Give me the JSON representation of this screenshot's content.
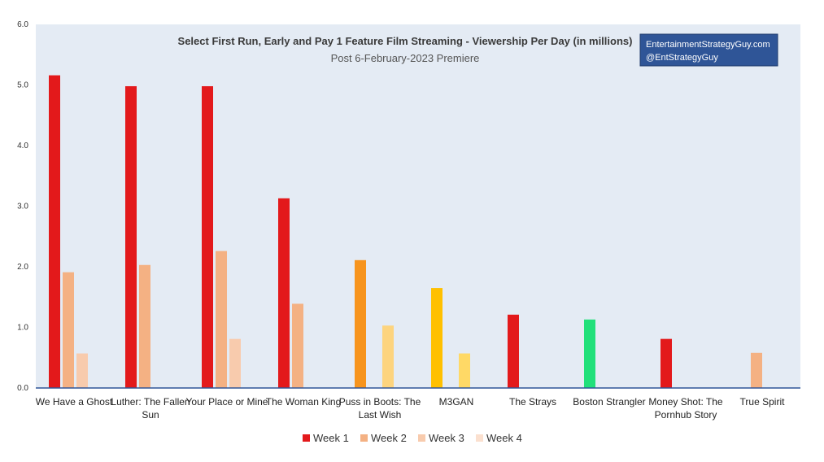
{
  "chart_data": {
    "type": "bar",
    "title": "Select First Run, Early and Pay 1 Feature Film Streaming - Viewership Per Day (in millions)",
    "subtitle": "Post 6-February-2023 Premiere",
    "annotation": [
      "EntertainmentStrategyGuy.com",
      "@EntStrategyGuy"
    ],
    "ylim": [
      0,
      6
    ],
    "yticks": [
      "0.0",
      "1.0",
      "2.0",
      "3.0",
      "4.0",
      "5.0",
      "6.0"
    ],
    "grid": false,
    "legend_position": "bottom",
    "categories": [
      [
        "We Have a Ghost"
      ],
      [
        "Luther: The Fallen",
        "Sun"
      ],
      [
        "Your Place or Mine"
      ],
      [
        "The Woman King"
      ],
      [
        "Puss in Boots: The",
        "Last Wish"
      ],
      [
        "M3GAN"
      ],
      [
        "The Strays"
      ],
      [
        "Boston Strangler"
      ],
      [
        "Money Shot: The",
        "Pornhub Story"
      ],
      [
        "True Spirit"
      ]
    ],
    "series": [
      {
        "name": "Week 1",
        "color": "#e3191b",
        "values": [
          5.16,
          4.98,
          4.98,
          3.13,
          2.11,
          1.65,
          1.21,
          1.13,
          0.81,
          null
        ]
      },
      {
        "name": "Week 2",
        "color": "#f4b183",
        "values": [
          1.91,
          2.03,
          2.26,
          1.39,
          null,
          null,
          null,
          null,
          null,
          0.58
        ]
      },
      {
        "name": "Week 3",
        "color": "#f8cbad",
        "values": [
          0.57,
          null,
          0.81,
          null,
          1.03,
          0.57,
          null,
          null,
          null,
          null
        ]
      },
      {
        "name": "Week 4",
        "color": "#fbe0cf",
        "values": [
          null,
          null,
          null,
          null,
          null,
          null,
          null,
          null,
          null,
          null
        ]
      }
    ],
    "bar_color_overrides": [
      {
        "category": 4,
        "series": 0,
        "color": "#f7941d"
      },
      {
        "category": 4,
        "series": 2,
        "color": "#fdd47e"
      },
      {
        "category": 5,
        "series": 0,
        "color": "#ffc000"
      },
      {
        "category": 5,
        "series": 2,
        "color": "#ffd966"
      },
      {
        "category": 7,
        "series": 0,
        "color": "#21e07a"
      }
    ]
  }
}
